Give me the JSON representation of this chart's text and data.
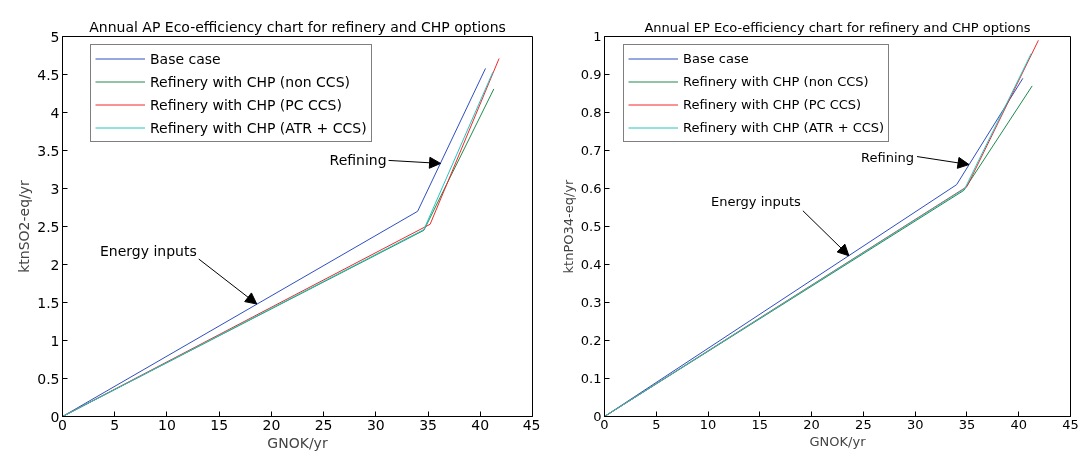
{
  "chart_data": [
    {
      "type": "line",
      "title": "Annual AP Eco-efficiency chart for refinery and CHP options",
      "xlabel": "GNOK/yr",
      "ylabel": "ktnSO2-eq/yr",
      "xlim": [
        0,
        45
      ],
      "xticks": [
        0,
        5,
        10,
        15,
        20,
        25,
        30,
        35,
        40,
        45
      ],
      "ylim": [
        0,
        5
      ],
      "yticks": [
        0,
        0.5,
        1,
        1.5,
        2,
        2.5,
        3,
        3.5,
        4,
        4.5,
        5
      ],
      "legend": "top left",
      "series": [
        {
          "name": "Base case",
          "color": "#2f4fc0",
          "x": [
            0,
            34,
            40.5
          ],
          "values": [
            0,
            2.7,
            4.58
          ]
        },
        {
          "name": "Refinery with CHP (non CCS)",
          "color": "#1e8a4c",
          "x": [
            0,
            34.6,
            41.3
          ],
          "values": [
            0,
            2.45,
            4.31
          ]
        },
        {
          "name": "Refinery with CHP (PC CCS)",
          "color": "#f02828",
          "x": [
            0,
            35.2,
            41.8
          ],
          "values": [
            0,
            2.53,
            4.71
          ]
        },
        {
          "name": "Refinery with CHP (ATR + CCS)",
          "color": "#26c4c4",
          "x": [
            0,
            34.6,
            41.2
          ],
          "values": [
            0,
            2.46,
            4.53
          ]
        }
      ],
      "annotations": [
        {
          "text": "Refining",
          "x": 36.2,
          "y": 3.33
        },
        {
          "text": "Energy inputs",
          "x": 18.6,
          "y": 1.48
        }
      ]
    },
    {
      "type": "line",
      "title": "Annual EP Eco-efficiency chart for refinery and CHP options",
      "xlabel": "GNOK/yr",
      "ylabel": "ktnPO34-eq/yr",
      "xlim": [
        0,
        45
      ],
      "xticks": [
        0,
        5,
        10,
        15,
        20,
        25,
        30,
        35,
        40,
        45
      ],
      "ylim": [
        0,
        1
      ],
      "yticks": [
        0,
        0.1,
        0.2,
        0.3,
        0.4,
        0.5,
        0.6,
        0.7,
        0.8,
        0.9,
        1
      ],
      "legend": "top left",
      "series": [
        {
          "name": "Base case",
          "color": "#2f4fc0",
          "x": [
            0,
            34,
            40.4
          ],
          "values": [
            0,
            0.61,
            0.89
          ]
        },
        {
          "name": "Refinery with CHP (non CCS)",
          "color": "#1e8a4c",
          "x": [
            0,
            34.7,
            41.3
          ],
          "values": [
            0,
            0.595,
            0.87
          ]
        },
        {
          "name": "Refinery with CHP (PC CCS)",
          "color": "#f02828",
          "x": [
            0,
            35,
            41.9
          ],
          "values": [
            0,
            0.605,
            0.99
          ]
        },
        {
          "name": "Refinery with CHP (ATR + CCS)",
          "color": "#26c4c4",
          "x": [
            0,
            34.8,
            41.2
          ],
          "values": [
            0,
            0.6,
            0.955
          ]
        }
      ],
      "annotations": [
        {
          "text": "Refining",
          "x": 35.2,
          "y": 0.663
        },
        {
          "text": "Energy inputs",
          "x": 23.6,
          "y": 0.423
        }
      ]
    }
  ]
}
